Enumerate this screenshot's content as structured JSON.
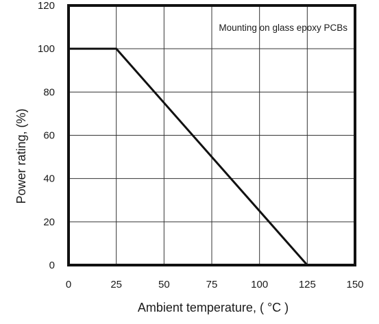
{
  "chart_data": {
    "type": "line",
    "title": "",
    "xlabel": "Ambient temperature, ( °C )",
    "ylabel": "Power rating, (%)",
    "xlim": [
      0,
      150
    ],
    "ylim": [
      0,
      120
    ],
    "x_ticks": [
      0,
      25,
      50,
      75,
      100,
      125,
      150
    ],
    "y_ticks": [
      0,
      20,
      40,
      60,
      80,
      100,
      120
    ],
    "grid": true,
    "annotation": "Mounting on glass epoxy PCBs",
    "series": [
      {
        "x": [
          0,
          25,
          125
        ],
        "y": [
          100,
          100,
          0
        ]
      }
    ],
    "colors": {
      "line": "#111111",
      "grid": "#333333",
      "frame": "#111111"
    }
  }
}
